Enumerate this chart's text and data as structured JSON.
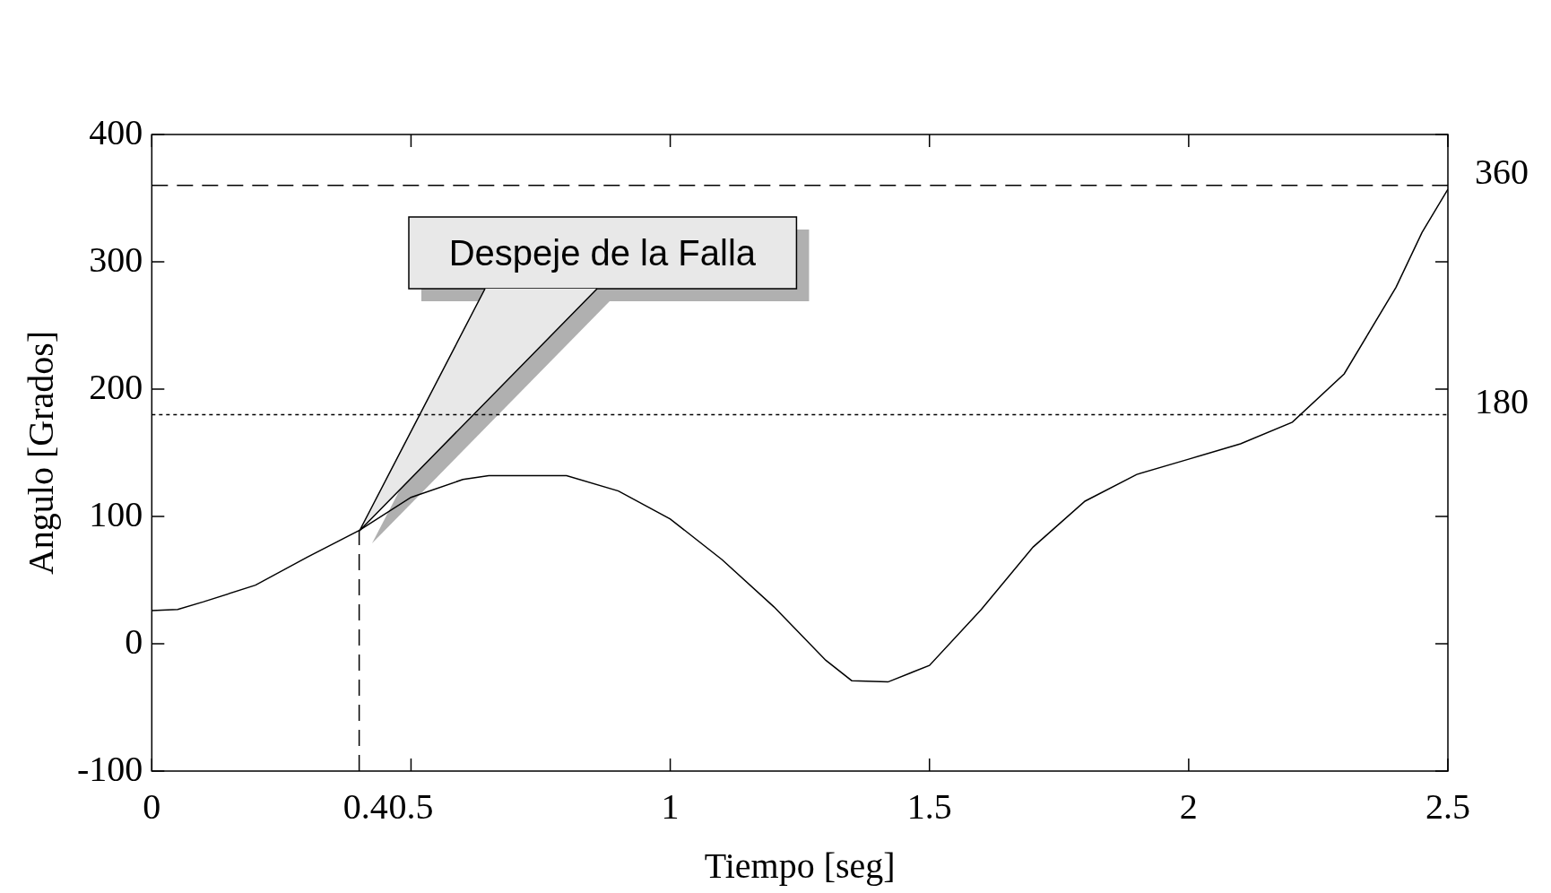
{
  "chart_data": {
    "type": "line",
    "xlabel": "Tiempo [seg]",
    "ylabel": "Angulo [Grados]",
    "x": [
      0,
      0.05,
      0.1,
      0.2,
      0.3,
      0.4,
      0.5,
      0.6,
      0.65,
      0.8,
      0.9,
      1.0,
      1.1,
      1.2,
      1.3,
      1.35,
      1.42,
      1.5,
      1.6,
      1.7,
      1.8,
      1.9,
      2.0,
      2.1,
      2.2,
      2.3,
      2.4,
      2.45,
      2.5
    ],
    "series": [
      {
        "color": "#000000",
        "values": [
          26,
          27,
          33,
          46,
          68,
          89,
          115,
          129,
          132,
          132,
          120,
          98,
          66,
          29,
          -13,
          -29,
          -30,
          -17,
          27,
          76,
          112,
          133,
          145,
          157,
          174,
          212,
          280,
          323,
          357
        ]
      }
    ],
    "xlim": [
      0,
      2.5
    ],
    "ylim": [
      -100,
      400
    ],
    "xticks": [
      0,
      0.5,
      1,
      1.5,
      2,
      2.5
    ],
    "yticks": [
      -100,
      0,
      100,
      200,
      300,
      400
    ],
    "ref_lines": [
      {
        "axis": "y",
        "value": 360,
        "label": "360",
        "line_style": "dashed",
        "color": "#000000"
      },
      {
        "axis": "y",
        "value": 180,
        "label": "180",
        "line_style": "dotted",
        "color": "#000000"
      },
      {
        "axis": "x",
        "value": 0.4,
        "label": "0.4",
        "line_style": "dashed",
        "color": "#000000"
      }
    ],
    "annotations": [
      "Despeje de la Falla"
    ]
  }
}
